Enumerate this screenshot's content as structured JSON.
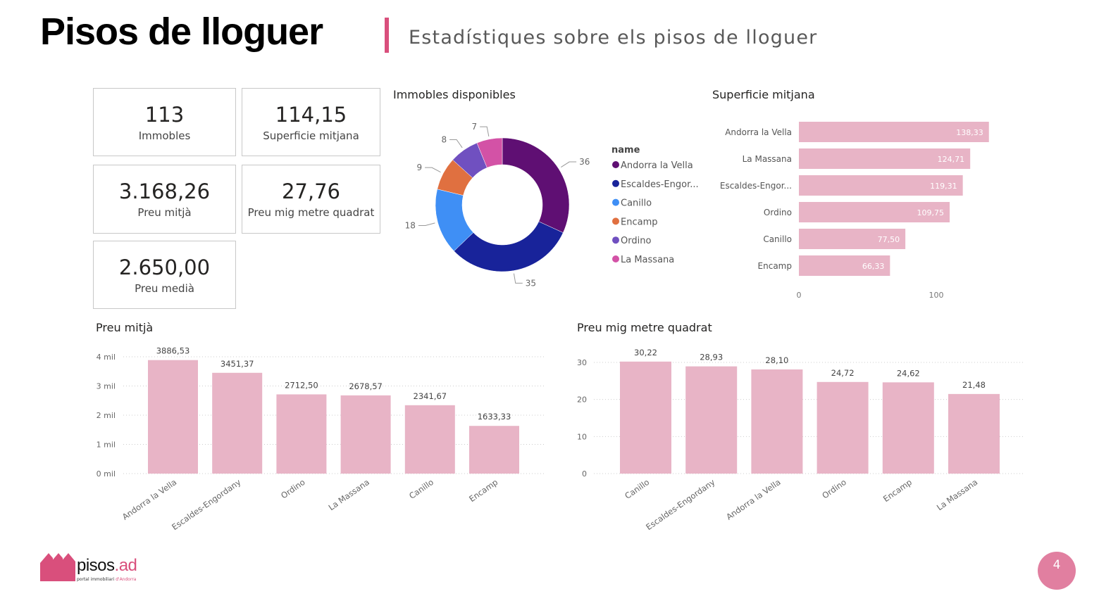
{
  "header": {
    "title": "Pisos de lloguer",
    "subtitle": "Estadístiques sobre els pisos de lloguer"
  },
  "kpis": [
    {
      "value": "113",
      "label": "Immobles"
    },
    {
      "value": "114,15",
      "label": "Superficie mitjana"
    },
    {
      "value": "3.168,26",
      "label": "Preu mitjà"
    },
    {
      "value": "27,76",
      "label": "Preu mig metre quadrat"
    },
    {
      "value": "2.650,00",
      "label": "Preu medià"
    }
  ],
  "chart_data": [
    {
      "type": "pie",
      "title": "Immobles disponibles",
      "legend_title": "name",
      "legend_position": "right",
      "categories": [
        "Andorra la Vella",
        "Escaldes-Engor...",
        "Canillo",
        "Encamp",
        "Ordino",
        "La Massana"
      ],
      "values": [
        36,
        35,
        18,
        9,
        8,
        7
      ],
      "colors": [
        "#5f0f73",
        "#18239a",
        "#3f8ff5",
        "#e07040",
        "#7050c0",
        "#d352a6"
      ]
    },
    {
      "type": "bar",
      "orientation": "horizontal",
      "title": "Superficie mitjana",
      "categories": [
        "Andorra la Vella",
        "La Massana",
        "Escaldes-Engor...",
        "Ordino",
        "Canillo",
        "Encamp"
      ],
      "values": [
        138.33,
        124.71,
        119.31,
        109.75,
        77.5,
        66.33
      ],
      "labels": [
        "138,33",
        "124,71",
        "119,31",
        "109,75",
        "77,50",
        "66,33"
      ],
      "ticks": [
        "0",
        "100"
      ],
      "xlim": [
        0,
        140
      ]
    },
    {
      "type": "bar",
      "title": "Preu mitjà",
      "categories": [
        "Andorra la Vella",
        "Escaldes-Engordany",
        "Ordino",
        "La Massana",
        "Canillo",
        "Encamp"
      ],
      "values": [
        3886.53,
        3451.37,
        2712.5,
        2678.57,
        2341.67,
        1633.33
      ],
      "labels": [
        "3886,53",
        "3451,37",
        "2712,50",
        "2678,57",
        "2341,67",
        "1633,33"
      ],
      "yticks": [
        {
          "v": 0,
          "t": "0 mil"
        },
        {
          "v": 1000,
          "t": "1 mil"
        },
        {
          "v": 2000,
          "t": "2 mil"
        },
        {
          "v": 3000,
          "t": "3 mil"
        },
        {
          "v": 4000,
          "t": "4 mil"
        }
      ],
      "ylim": [
        0,
        4000
      ],
      "grid": true
    },
    {
      "type": "bar",
      "title": "Preu mig metre quadrat",
      "categories": [
        "Canillo",
        "Escaldes-Engordany",
        "Andorra la Vella",
        "Ordino",
        "Encamp",
        "La Massana"
      ],
      "values": [
        30.22,
        28.93,
        28.1,
        24.72,
        24.62,
        21.48
      ],
      "labels": [
        "30,22",
        "28,93",
        "28,10",
        "24,72",
        "24,62",
        "21,48"
      ],
      "yticks": [
        {
          "v": 0,
          "t": "0"
        },
        {
          "v": 10,
          "t": "10"
        },
        {
          "v": 20,
          "t": "20"
        },
        {
          "v": 30,
          "t": "30"
        }
      ],
      "ylim": [
        0,
        30
      ],
      "grid": true
    }
  ],
  "colors": {
    "accent": "#d94f7c",
    "bar": "#e8b4c6"
  },
  "footer": {
    "logo_main": "pisos",
    "logo_ext": ".ad",
    "logo_tag": "portal immobiliari ",
    "logo_tag2": "d'Andorra",
    "page": "4"
  }
}
